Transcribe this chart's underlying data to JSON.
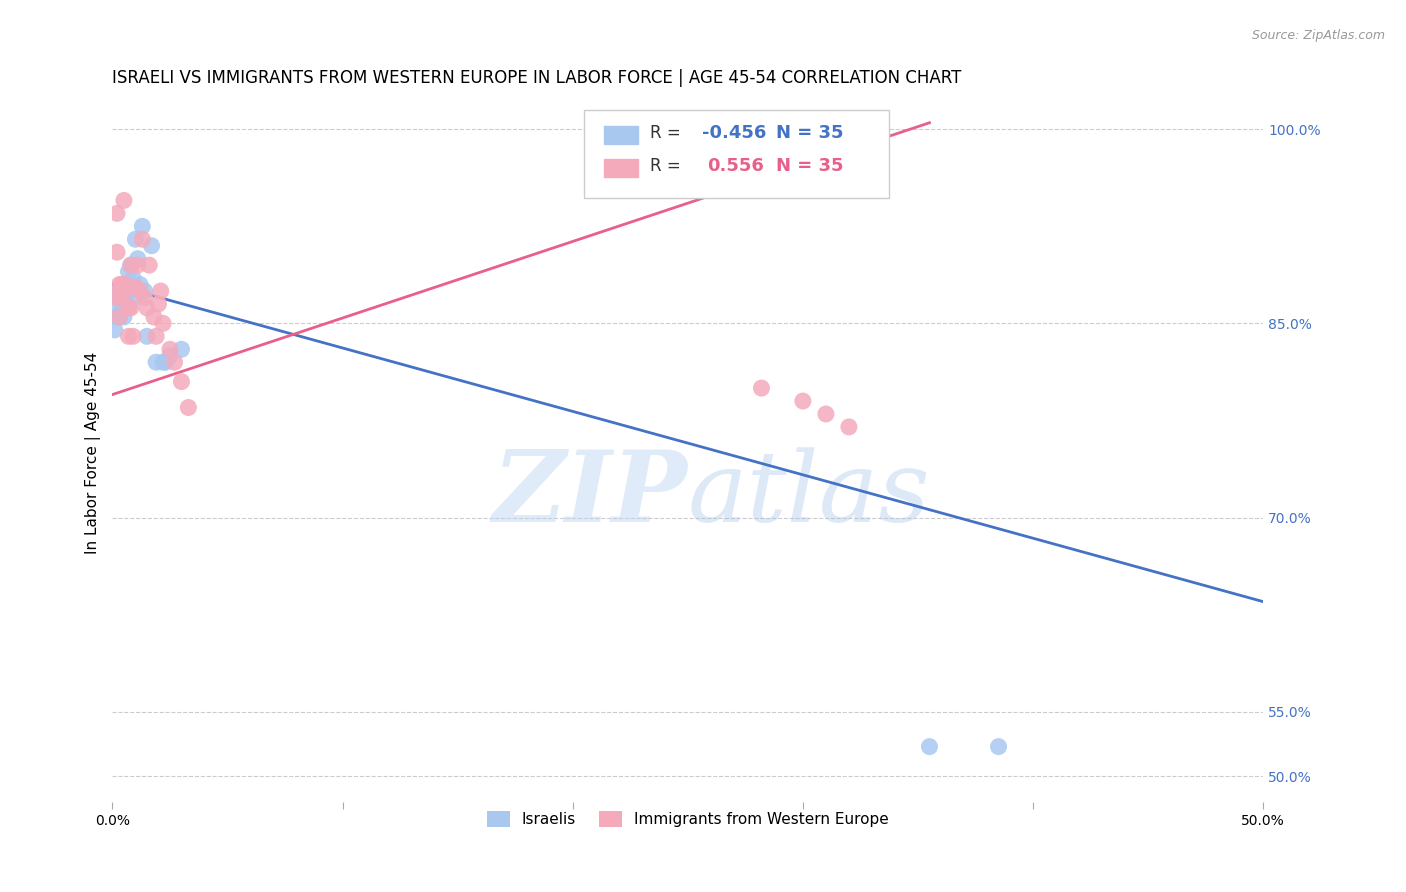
{
  "title": "ISRAELI VS IMMIGRANTS FROM WESTERN EUROPE IN LABOR FORCE | AGE 45-54 CORRELATION CHART",
  "source": "Source: ZipAtlas.com",
  "ylabel": "In Labor Force | Age 45-54",
  "xlim": [
    0.0,
    0.5
  ],
  "ylim": [
    0.48,
    1.02
  ],
  "blue_r": "-0.456",
  "blue_n": "35",
  "pink_r": "0.556",
  "pink_n": "35",
  "blue_color": "#A8C8F0",
  "pink_color": "#F4AABB",
  "blue_line_color": "#4472C4",
  "pink_line_color": "#E8608A",
  "legend_blue_label": "Israelis",
  "legend_pink_label": "Immigrants from Western Europe",
  "watermark_zip": "ZIP",
  "watermark_atlas": "atlas",
  "blue_line_x0": 0.0,
  "blue_line_y0": 0.88,
  "blue_line_x1": 0.5,
  "blue_line_y1": 0.635,
  "pink_line_x0": 0.0,
  "pink_line_y0": 0.795,
  "pink_line_x1": 0.355,
  "pink_line_y1": 1.005,
  "blue_scatter_x": [
    0.001,
    0.002,
    0.002,
    0.003,
    0.003,
    0.003,
    0.004,
    0.004,
    0.005,
    0.005,
    0.005,
    0.006,
    0.006,
    0.006,
    0.007,
    0.007,
    0.007,
    0.008,
    0.008,
    0.009,
    0.01,
    0.01,
    0.011,
    0.012,
    0.013,
    0.014,
    0.015,
    0.017,
    0.019,
    0.022,
    0.023,
    0.025,
    0.03,
    0.355,
    0.385
  ],
  "blue_scatter_y": [
    0.845,
    0.855,
    0.87,
    0.86,
    0.855,
    0.875,
    0.87,
    0.865,
    0.88,
    0.875,
    0.855,
    0.88,
    0.875,
    0.865,
    0.89,
    0.878,
    0.862,
    0.895,
    0.875,
    0.885,
    0.915,
    0.87,
    0.9,
    0.88,
    0.925,
    0.875,
    0.84,
    0.91,
    0.82,
    0.82,
    0.82,
    0.825,
    0.83,
    0.523,
    0.523
  ],
  "pink_scatter_x": [
    0.001,
    0.002,
    0.002,
    0.003,
    0.003,
    0.004,
    0.004,
    0.005,
    0.005,
    0.006,
    0.007,
    0.007,
    0.008,
    0.008,
    0.009,
    0.01,
    0.011,
    0.012,
    0.013,
    0.014,
    0.015,
    0.016,
    0.018,
    0.019,
    0.02,
    0.021,
    0.022,
    0.025,
    0.027,
    0.03,
    0.033,
    0.282,
    0.3,
    0.31,
    0.32
  ],
  "pink_scatter_y": [
    0.87,
    0.905,
    0.935,
    0.88,
    0.855,
    0.88,
    0.87,
    0.945,
    0.875,
    0.88,
    0.862,
    0.84,
    0.895,
    0.862,
    0.84,
    0.878,
    0.895,
    0.875,
    0.915,
    0.87,
    0.862,
    0.895,
    0.855,
    0.84,
    0.865,
    0.875,
    0.85,
    0.83,
    0.82,
    0.805,
    0.785,
    0.8,
    0.79,
    0.78,
    0.77
  ],
  "title_fontsize": 12,
  "axis_label_fontsize": 11,
  "tick_fontsize": 10
}
